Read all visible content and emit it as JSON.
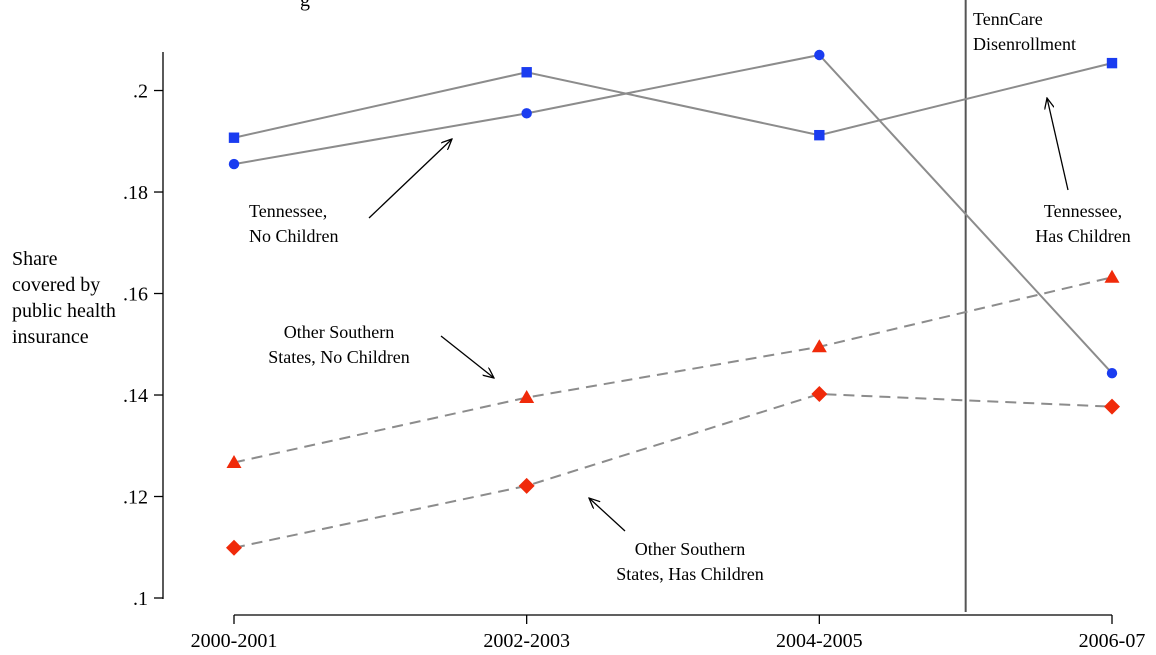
{
  "chart_data": {
    "type": "line",
    "title": "g",
    "categories": [
      "2000-2001",
      "2002-2003",
      "2004-2005",
      "2006-07"
    ],
    "ylabel_lines": [
      "Share",
      "covered by",
      "public health",
      "insurance"
    ],
    "ylim": [
      0.1,
      0.207
    ],
    "yticks": [
      0.1,
      0.12,
      0.14,
      0.16,
      0.18,
      0.2
    ],
    "ytick_labels": [
      ".1",
      ".12",
      ".14",
      ".16",
      ".18",
      ".2"
    ],
    "grid": false,
    "series": [
      {
        "key": "tn_nochild",
        "name": "Tennessee, No Children",
        "values": [
          0.1855,
          0.1955,
          0.207,
          0.1443
        ],
        "marker": "circle",
        "color": "#1a3cf0",
        "line_color": "#8c8c8c",
        "dash": false
      },
      {
        "key": "tn_child",
        "name": "Tennessee, Has Children",
        "values": [
          0.1907,
          0.2036,
          0.1912,
          0.2054
        ],
        "marker": "square",
        "color": "#1a3cf0",
        "line_color": "#8c8c8c",
        "dash": false
      },
      {
        "key": "south_nochild",
        "name": "Other Southern States, No Children",
        "values": [
          0.1267,
          0.1395,
          0.1495,
          0.1632
        ],
        "marker": "triangle",
        "color": "#f02a0a",
        "line_color": "#8c8c8c",
        "dash": true
      },
      {
        "key": "south_child",
        "name": "Other Southern States, Has Children",
        "values": [
          0.1099,
          0.1221,
          0.1402,
          0.1377
        ],
        "marker": "diamond",
        "color": "#f02a0a",
        "line_color": "#8c8c8c",
        "dash": true
      }
    ],
    "annotations": [
      {
        "key": "ann-tennessee-no-children",
        "lines": [
          "Tennessee,",
          "No Children"
        ]
      },
      {
        "key": "ann-tennessee-has-children",
        "lines": [
          "Tennessee,",
          "Has Children"
        ]
      },
      {
        "key": "ann-southern-no-children",
        "lines": [
          "Other Southern",
          "States, No Children"
        ]
      },
      {
        "key": "ann-southern-has-children",
        "lines": [
          "Other Southern",
          "States, Has Children"
        ]
      },
      {
        "key": "ann-tenncare-disenrollment",
        "lines": [
          "TennCare",
          "Disenrollment"
        ]
      }
    ],
    "event_line": {
      "label": "TennCare Disenrollment",
      "x_between": [
        "2004-2005",
        "2006-07"
      ],
      "fraction": 0.5
    }
  }
}
